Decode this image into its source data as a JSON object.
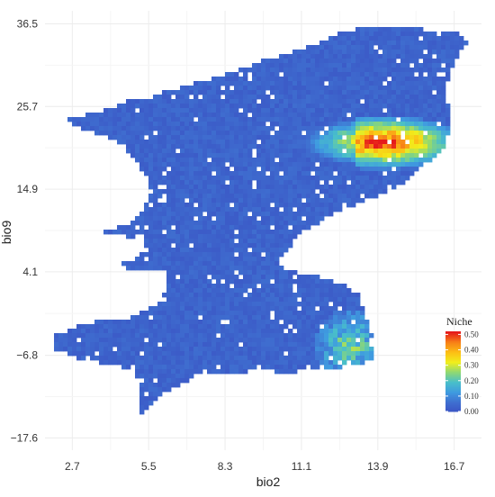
{
  "chart_data": {
    "type": "heatmap",
    "xlabel": "bio2",
    "ylabel": "bio9",
    "xlim": [
      1.7,
      17.7
    ],
    "ylim": [
      -19.2,
      38.2
    ],
    "x_ticks": [
      "2.7",
      "5.5",
      "8.3",
      "11.1",
      "13.9",
      "16.7"
    ],
    "y_ticks": [
      "36.5",
      "25.7",
      "14.9",
      "4.1",
      "−6.8",
      "−17.6"
    ],
    "grid": true,
    "legend": {
      "title": "Niche",
      "placement": "right-inside",
      "ticks": [
        "0.50",
        "0.40",
        "0.30",
        "0.20",
        "0.10",
        "0.00"
      ],
      "range": [
        0,
        0.52
      ],
      "colors": [
        "#3a53c4",
        "#3f6fd0",
        "#3f9be0",
        "#49bfc9",
        "#8fd873",
        "#f1ee1c",
        "#fcbe15",
        "#f77f17",
        "#e61b1b"
      ]
    },
    "zones": [
      {
        "name": "background",
        "value": 0.02
      },
      {
        "name": "northeast-hotspot",
        "center": [
          14.0,
          21.0
        ],
        "value": 0.5
      },
      {
        "name": "southeast-hotspot",
        "center": [
          12.9,
          -5.6
        ],
        "value": 0.3
      }
    ]
  }
}
